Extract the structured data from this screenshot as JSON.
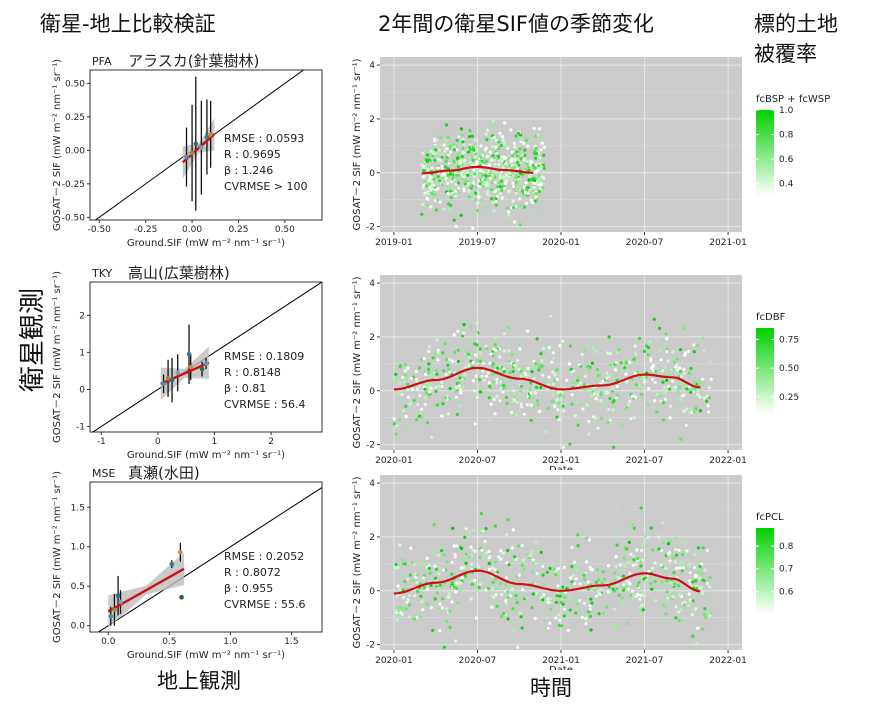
{
  "headings": {
    "validation": "衛星-地上比較検証",
    "seasonal": "2年間の衛星SIF値の季節変化",
    "cover_line1": "標的土地",
    "cover_line2": "被覆率",
    "y_big": "衛星観測",
    "x_big_left": "地上観測",
    "x_big_right": "時間"
  },
  "scatter_axis": {
    "ylabel": "GOSAT－2 SIF (mW m⁻² nm⁻¹ sr⁻¹)",
    "xlabel": "Ground.SIF (mW m⁻² nm⁻¹ sr⁻¹)"
  },
  "ts_axis": {
    "ylabel": "GOSAT－2 SIF (mW m⁻² nm⁻¹ sr⁻¹)",
    "xlabel": "Date"
  },
  "colors": {
    "panel_bg": "#cbcbcb",
    "point_high": "#00d000",
    "point_low": "#ffffff",
    "fit_line": "#cc1111",
    "fit_band": "#bdbdbd",
    "one_to_one": "#000000"
  },
  "chart_data": [
    {
      "type": "scatter",
      "site_code": "PFA",
      "site_name": "アラスカ(針葉樹林)",
      "xlim": [
        -0.55,
        0.7
      ],
      "ylim": [
        -0.52,
        0.6
      ],
      "xticks": [
        -0.5,
        -0.25,
        0.0,
        0.25,
        0.5
      ],
      "yticks": [
        -0.5,
        -0.25,
        0.0,
        0.25,
        0.5
      ],
      "xtick_labels": [
        "-0.50",
        "-0.25",
        "0.00",
        "0.25",
        "0.50"
      ],
      "ytick_labels": [
        "-0.50",
        "-0.25",
        "0.00",
        "0.25",
        "0.50"
      ],
      "points": [
        {
          "x": -0.03,
          "y": -0.05,
          "err": 0.22
        },
        {
          "x": 0.0,
          "y": -0.02,
          "err": 0.36
        },
        {
          "x": 0.02,
          "y": 0.05,
          "err": 0.5
        },
        {
          "x": 0.05,
          "y": 0.02,
          "err": 0.35
        },
        {
          "x": 0.08,
          "y": 0.1,
          "err": 0.28
        },
        {
          "x": 0.1,
          "y": 0.12,
          "err": 0.25
        }
      ],
      "fit": {
        "x": [
          -0.05,
          0.12
        ],
        "y": [
          -0.09,
          0.12
        ]
      },
      "stats": [
        "RMSE : 0.0593",
        "R : 0.9695",
        "β : 1.246",
        "CVRMSE > 100"
      ]
    },
    {
      "type": "scatter",
      "site_code": "TKY",
      "site_name": "高山(広葉樹林)",
      "xlim": [
        -1.2,
        2.9
      ],
      "ylim": [
        -1.15,
        2.9
      ],
      "xticks": [
        -1,
        0,
        1,
        2
      ],
      "yticks": [
        -1,
        0,
        1,
        2
      ],
      "xtick_labels": [
        "-1",
        "0",
        "1",
        "2"
      ],
      "ytick_labels": [
        "-1",
        "0",
        "1",
        "2"
      ],
      "points": [
        {
          "x": 0.1,
          "y": 0.15,
          "err": 0.25
        },
        {
          "x": 0.18,
          "y": 0.3,
          "err": 0.5
        },
        {
          "x": 0.25,
          "y": 0.25,
          "err": 0.6
        },
        {
          "x": 0.35,
          "y": 0.45,
          "err": 0.5
        },
        {
          "x": 0.55,
          "y": 0.95,
          "err": 0.8
        },
        {
          "x": 0.58,
          "y": 0.6,
          "err": 0.35
        },
        {
          "x": 0.78,
          "y": 0.55,
          "err": 0.2
        },
        {
          "x": 0.85,
          "y": 0.7,
          "err": 0.15
        }
      ],
      "fit": {
        "x": [
          0.05,
          0.9
        ],
        "y": [
          0.15,
          0.72
        ]
      },
      "stats": [
        "RMSE : 0.1809",
        "R : 0.8148",
        "β : 0.81",
        "CVRMSE : 56.4"
      ]
    },
    {
      "type": "scatter",
      "site_code": "MSE",
      "site_name": "真瀬(水田)",
      "xlim": [
        -0.15,
        1.75
      ],
      "ylim": [
        -0.08,
        1.82
      ],
      "xticks": [
        0.0,
        0.5,
        1.0,
        1.5
      ],
      "yticks": [
        0.0,
        0.5,
        1.0,
        1.5
      ],
      "xtick_labels": [
        "0.0",
        "0.5",
        "1.0",
        "1.5"
      ],
      "ytick_labels": [
        "0.0",
        "0.5",
        "1.0",
        "1.5"
      ],
      "points": [
        {
          "x": 0.02,
          "y": 0.12,
          "err": 0.12
        },
        {
          "x": 0.05,
          "y": 0.2,
          "err": 0.2
        },
        {
          "x": 0.08,
          "y": 0.38,
          "err": 0.25
        },
        {
          "x": 0.1,
          "y": 0.3,
          "err": 0.15
        },
        {
          "x": 0.52,
          "y": 0.78,
          "err": 0.05
        },
        {
          "x": 0.59,
          "y": 0.93,
          "err": 0.12
        },
        {
          "x": 0.6,
          "y": 0.36,
          "err": 0
        }
      ],
      "fit": {
        "x": [
          0.0,
          0.62
        ],
        "y": [
          0.18,
          0.72
        ]
      },
      "stats": [
        "RMSE : 0.2052",
        "R : 0.8072",
        "β : 0.955",
        "CVRMSE : 55.6"
      ]
    },
    {
      "type": "scatter",
      "panel": "PFA time series",
      "x_dates": [
        "2019-01",
        "2019-07",
        "2020-01",
        "2020-07",
        "2021-01"
      ],
      "xlim_months": [
        "2018-12",
        "2021-02"
      ],
      "ylim": [
        -2.2,
        4.3
      ],
      "yticks": [
        -2,
        0,
        2,
        4
      ],
      "data_range": [
        "2019-03",
        "2019-11"
      ],
      "trend": [
        {
          "date": "2019-03",
          "y": -0.02
        },
        {
          "date": "2019-05",
          "y": 0.08
        },
        {
          "date": "2019-07",
          "y": 0.22
        },
        {
          "date": "2019-09",
          "y": 0.1
        },
        {
          "date": "2019-11",
          "y": 0.0
        }
      ],
      "scatter_spread": 0.7,
      "legend": {
        "title": "fcBSP + fcWSP",
        "ticks": [
          "1.0",
          "0.8",
          "0.6",
          "0.4"
        ],
        "min": 0.3,
        "max": 1.0
      }
    },
    {
      "type": "scatter",
      "panel": "TKY time series",
      "x_dates": [
        "2020-01",
        "2020-07",
        "2021-01",
        "2021-07",
        "2022-01"
      ],
      "xlim_months": [
        "2019-12",
        "2022-02"
      ],
      "ylim": [
        -2.2,
        4.3
      ],
      "yticks": [
        -2,
        0,
        2,
        4
      ],
      "data_range": [
        "2020-01",
        "2021-11"
      ],
      "trend": [
        {
          "date": "2020-01",
          "y": 0.05
        },
        {
          "date": "2020-04",
          "y": 0.4
        },
        {
          "date": "2020-07",
          "y": 0.85
        },
        {
          "date": "2020-10",
          "y": 0.45
        },
        {
          "date": "2021-01",
          "y": 0.05
        },
        {
          "date": "2021-04",
          "y": 0.2
        },
        {
          "date": "2021-07",
          "y": 0.6
        },
        {
          "date": "2021-09",
          "y": 0.5
        },
        {
          "date": "2021-11",
          "y": 0.12
        }
      ],
      "scatter_spread": 0.8,
      "legend": {
        "title": "fcDBF",
        "ticks": [
          "0.75",
          "0.50",
          "0.25"
        ],
        "min": 0.1,
        "max": 0.85
      }
    },
    {
      "type": "scatter",
      "panel": "MSE time series",
      "x_dates": [
        "2020-01",
        "2020-07",
        "2021-01",
        "2021-07",
        "2022-01"
      ],
      "xlim_months": [
        "2019-12",
        "2022-02"
      ],
      "ylim": [
        -2.2,
        4.3
      ],
      "yticks": [
        -2,
        0,
        2,
        4
      ],
      "data_range": [
        "2020-01",
        "2021-11"
      ],
      "trend": [
        {
          "date": "2020-01",
          "y": -0.1
        },
        {
          "date": "2020-04",
          "y": 0.3
        },
        {
          "date": "2020-07",
          "y": 0.75
        },
        {
          "date": "2020-10",
          "y": 0.25
        },
        {
          "date": "2021-01",
          "y": 0.0
        },
        {
          "date": "2021-04",
          "y": 0.2
        },
        {
          "date": "2021-07",
          "y": 0.65
        },
        {
          "date": "2021-09",
          "y": 0.45
        },
        {
          "date": "2021-11",
          "y": -0.02
        }
      ],
      "scatter_spread": 0.8,
      "legend": {
        "title": "fcPCL",
        "ticks": [
          "0.8",
          "0.7",
          "0.6"
        ],
        "min": 0.5,
        "max": 0.88
      }
    }
  ]
}
